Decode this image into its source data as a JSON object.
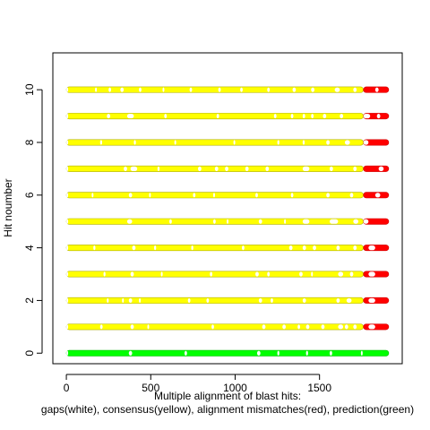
{
  "chart_data": {
    "type": "scatter",
    "title": "",
    "xlabel_line1": "Multiple alignment of blast hits:",
    "xlabel_line2": "gaps(white), consensus(yellow), alignment mismatches(red), prediction(green)",
    "ylabel": "Hit noumber",
    "xlim": [
      -80,
      1990
    ],
    "ylim": [
      -0.4,
      11.4
    ],
    "x_ticks": [
      0,
      500,
      1000,
      1500
    ],
    "x_tick_labels": [
      "0",
      "500",
      "1000",
      "1500"
    ],
    "y_ticks": [
      0,
      2,
      4,
      6,
      8,
      10
    ],
    "y_tick_labels": [
      "0",
      "2",
      "4",
      "6",
      "8",
      "10"
    ],
    "x_range": [
      0,
      1910
    ],
    "colors": {
      "gap": "#ffffff",
      "consensus": "#ffff00",
      "mismatch": "#ff0000",
      "prediction": "#00ff00",
      "point_outline": "#b0b000"
    },
    "rows": [
      {
        "hit": 0,
        "runs": [
          [
            "prediction",
            0,
            1910
          ]
        ],
        "gaps": [
          [
            0,
            10
          ],
          [
            370,
            390
          ],
          [
            700,
            715
          ],
          [
            1130,
            1150
          ],
          [
            1250,
            1262
          ],
          [
            1420,
            1432
          ],
          [
            1560,
            1575
          ],
          [
            1745,
            1755
          ]
        ]
      },
      {
        "hit": 1,
        "runs": [
          [
            "consensus",
            0,
            1760
          ],
          [
            "mismatch",
            1760,
            1910
          ]
        ],
        "gaps": [
          [
            0,
            10
          ],
          [
            200,
            215
          ],
          [
            380,
            400
          ],
          [
            480,
            490
          ],
          [
            860,
            875
          ],
          [
            1160,
            1180
          ],
          [
            1280,
            1300
          ],
          [
            1370,
            1385
          ],
          [
            1420,
            1440
          ],
          [
            1510,
            1530
          ],
          [
            1610,
            1640
          ],
          [
            1650,
            1670
          ],
          [
            1700,
            1720
          ],
          [
            1790,
            1830
          ]
        ]
      },
      {
        "hit": 2,
        "runs": [
          [
            "consensus",
            0,
            1760
          ],
          [
            "mismatch",
            1760,
            1910
          ]
        ],
        "gaps": [
          [
            0,
            10
          ],
          [
            240,
            250
          ],
          [
            330,
            340
          ],
          [
            370,
            390
          ],
          [
            430,
            440
          ],
          [
            720,
            735
          ],
          [
            830,
            845
          ],
          [
            1140,
            1160
          ],
          [
            1210,
            1225
          ],
          [
            1400,
            1420
          ],
          [
            1600,
            1620
          ],
          [
            1660,
            1690
          ],
          [
            1790,
            1830
          ]
        ]
      },
      {
        "hit": 3,
        "runs": [
          [
            "consensus",
            0,
            1760
          ],
          [
            "mismatch",
            1760,
            1910
          ]
        ],
        "gaps": [
          [
            0,
            10
          ],
          [
            220,
            232
          ],
          [
            380,
            400
          ],
          [
            560,
            570
          ],
          [
            850,
            865
          ],
          [
            1120,
            1140
          ],
          [
            1190,
            1205
          ],
          [
            1380,
            1400
          ],
          [
            1450,
            1460
          ],
          [
            1610,
            1640
          ],
          [
            1680,
            1700
          ],
          [
            1790,
            1830
          ]
        ]
      },
      {
        "hit": 4,
        "runs": [
          [
            "consensus",
            0,
            1760
          ],
          [
            "mismatch",
            1760,
            1910
          ]
        ],
        "gaps": [
          [
            0,
            10
          ],
          [
            160,
            172
          ],
          [
            390,
            410
          ],
          [
            520,
            532
          ],
          [
            740,
            752
          ],
          [
            1040,
            1055
          ],
          [
            1320,
            1340
          ],
          [
            1400,
            1420
          ],
          [
            1460,
            1480
          ],
          [
            1600,
            1620
          ],
          [
            1700,
            1720
          ],
          [
            1790,
            1830
          ]
        ]
      },
      {
        "hit": 5,
        "runs": [
          [
            "consensus",
            0,
            1760
          ],
          [
            "mismatch",
            1760,
            1910
          ]
        ],
        "gaps": [
          [
            0,
            10
          ],
          [
            360,
            390
          ],
          [
            610,
            625
          ],
          [
            870,
            885
          ],
          [
            950,
            960
          ],
          [
            1140,
            1160
          ],
          [
            1290,
            1300
          ],
          [
            1400,
            1440
          ],
          [
            1560,
            1610
          ],
          [
            1700,
            1730
          ],
          [
            1760,
            1790
          ]
        ]
      },
      {
        "hit": 6,
        "runs": [
          [
            "consensus",
            0,
            1760
          ],
          [
            "mismatch",
            1760,
            1910
          ]
        ],
        "gaps": [
          [
            0,
            10
          ],
          [
            150,
            160
          ],
          [
            370,
            390
          ],
          [
            490,
            500
          ],
          [
            750,
            765
          ],
          [
            870,
            880
          ],
          [
            1120,
            1135
          ],
          [
            1330,
            1345
          ],
          [
            1540,
            1560
          ],
          [
            1680,
            1700
          ],
          [
            1830,
            1860
          ]
        ]
      },
      {
        "hit": 7,
        "runs": [
          [
            "consensus",
            0,
            1760
          ],
          [
            "mismatch",
            1760,
            1910
          ]
        ],
        "gaps": [
          [
            0,
            10
          ],
          [
            340,
            360
          ],
          [
            380,
            420
          ],
          [
            540,
            552
          ],
          [
            780,
            800
          ],
          [
            880,
            900
          ],
          [
            940,
            960
          ],
          [
            1060,
            1080
          ],
          [
            1180,
            1200
          ],
          [
            1400,
            1440
          ],
          [
            1560,
            1580
          ],
          [
            1700,
            1720
          ],
          [
            1850,
            1880
          ]
        ]
      },
      {
        "hit": 8,
        "runs": [
          [
            "consensus",
            0,
            1760
          ],
          [
            "mismatch",
            1760,
            1910
          ]
        ],
        "gaps": [
          [
            0,
            10
          ],
          [
            200,
            212
          ],
          [
            400,
            412
          ],
          [
            640,
            650
          ],
          [
            990,
            1000
          ],
          [
            1250,
            1262
          ],
          [
            1400,
            1412
          ],
          [
            1540,
            1560
          ],
          [
            1650,
            1680
          ],
          [
            1760,
            1790
          ]
        ]
      },
      {
        "hit": 9,
        "runs": [
          [
            "consensus",
            0,
            1760
          ],
          [
            "mismatch",
            1760,
            1910
          ]
        ],
        "gaps": [
          [
            0,
            10
          ],
          [
            240,
            260
          ],
          [
            360,
            400
          ],
          [
            580,
            595
          ],
          [
            890,
            905
          ],
          [
            1230,
            1245
          ],
          [
            1330,
            1345
          ],
          [
            1400,
            1415
          ],
          [
            1450,
            1465
          ],
          [
            1520,
            1540
          ],
          [
            1620,
            1640
          ],
          [
            1760,
            1800
          ],
          [
            1840,
            1860
          ]
        ]
      },
      {
        "hit": 10,
        "runs": [
          [
            "consensus",
            0,
            1760
          ],
          [
            "mismatch",
            1760,
            1910
          ]
        ],
        "gaps": [
          [
            0,
            10
          ],
          [
            170,
            180
          ],
          [
            250,
            265
          ],
          [
            320,
            340
          ],
          [
            430,
            445
          ],
          [
            570,
            580
          ],
          [
            730,
            745
          ],
          [
            900,
            915
          ],
          [
            1030,
            1045
          ],
          [
            1190,
            1205
          ],
          [
            1340,
            1360
          ],
          [
            1450,
            1470
          ],
          [
            1590,
            1620
          ],
          [
            1700,
            1720
          ],
          [
            1830,
            1850
          ]
        ]
      }
    ]
  }
}
